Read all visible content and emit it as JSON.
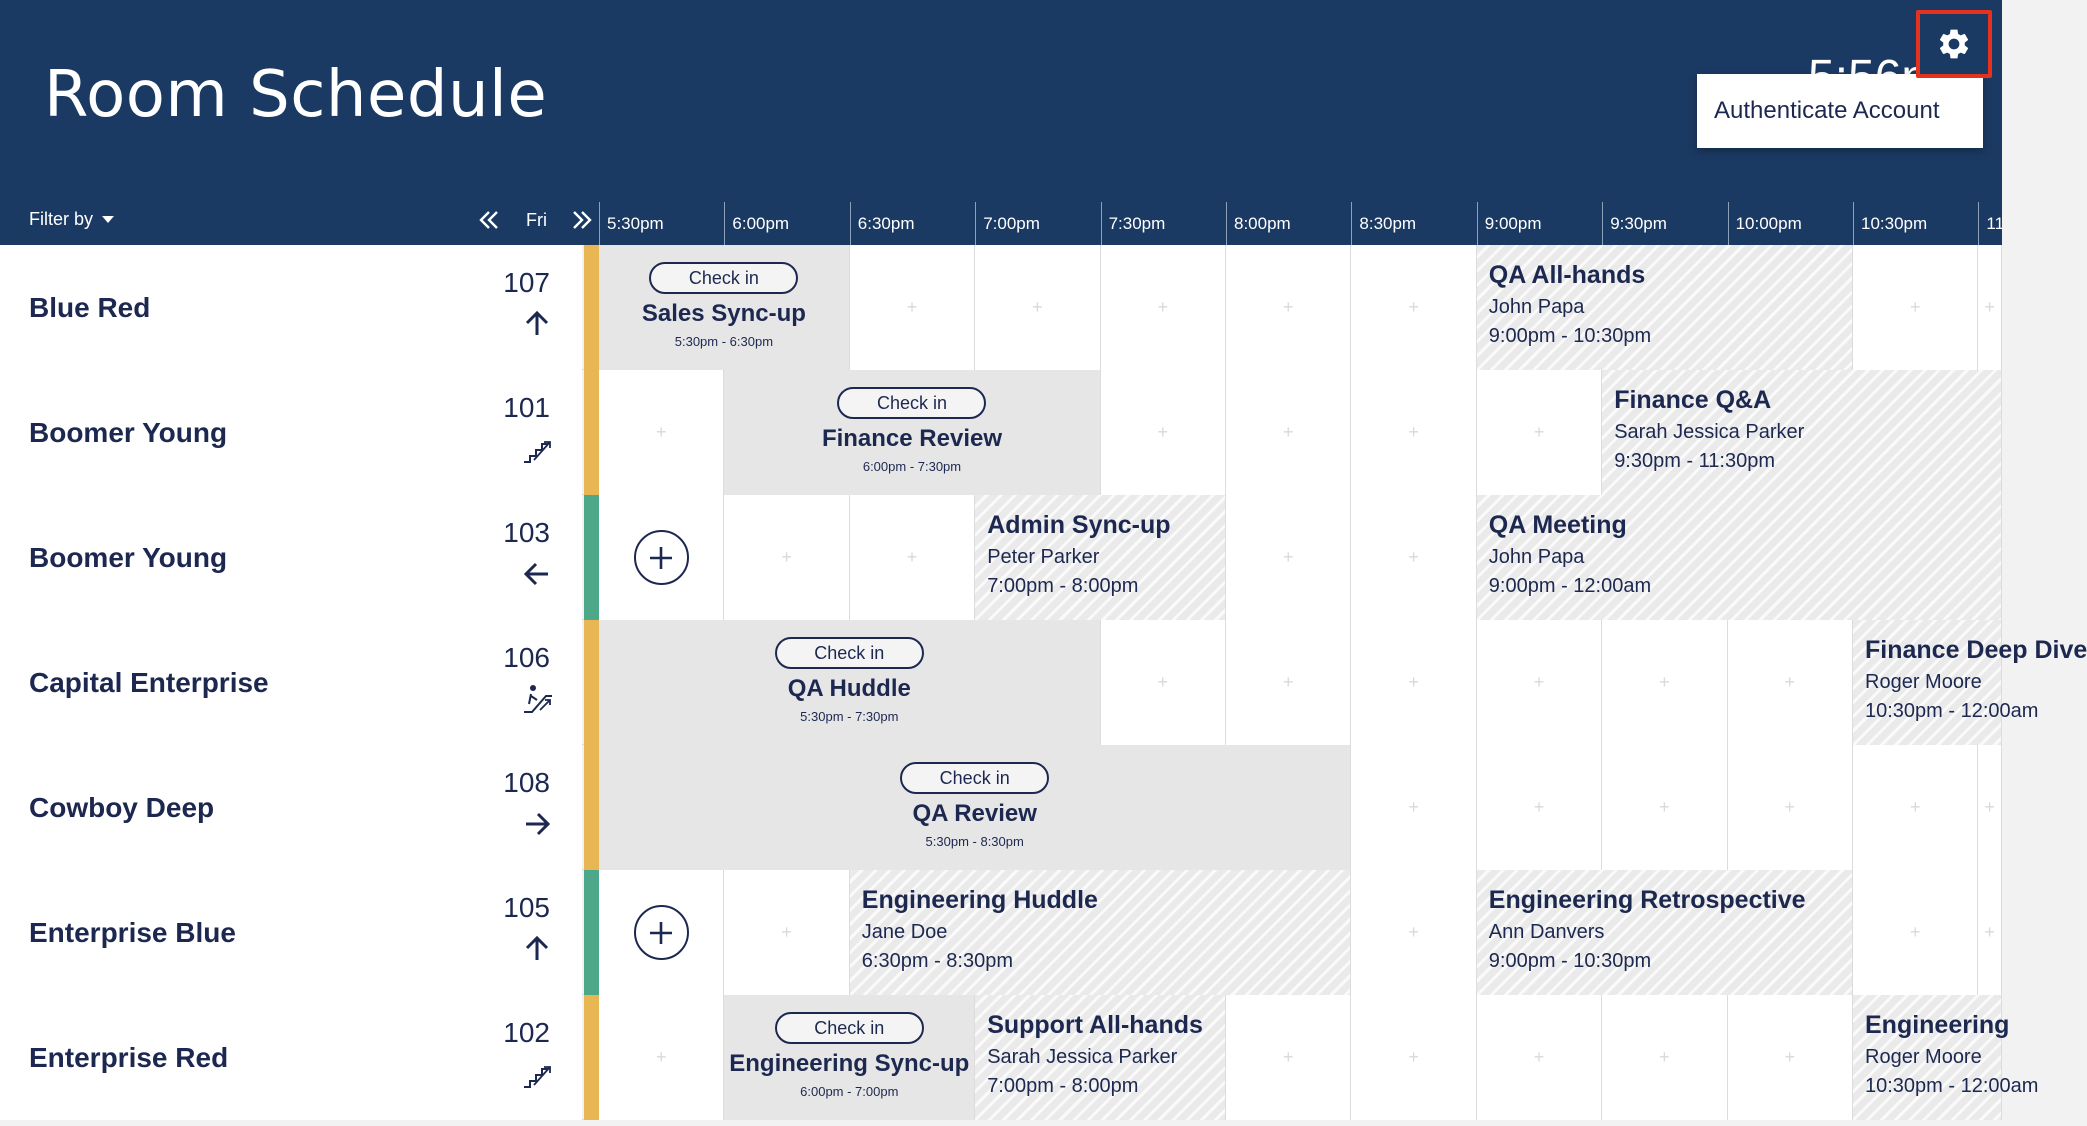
{
  "header": {
    "title": "Room Schedule",
    "clock_partial": "5:56p",
    "menu_item": "Authenticate Account"
  },
  "toolbar": {
    "filter_label": "Filter by",
    "day_label": "Fri",
    "prev_icon": "double-chevron-left",
    "next_icon": "double-chevron-right"
  },
  "timeline": {
    "ticks": [
      "5:30pm",
      "6:00pm",
      "6:30pm",
      "7:00pm",
      "7:30pm",
      "8:00pm",
      "8:30pm",
      "9:00pm",
      "9:30pm",
      "10:00pm",
      "10:30pm",
      "11"
    ]
  },
  "colors": {
    "header_bg": "#1b3a63",
    "status_busy": "#e9b654",
    "status_free": "#4da88a",
    "highlight_border": "#e5321f",
    "text": "#1d2850"
  },
  "rooms": [
    {
      "name": "Blue Red",
      "number": "107",
      "direction": "up-arrow",
      "status": "busy",
      "empty_slots": [
        2,
        3,
        4,
        5,
        6,
        10,
        11
      ],
      "events": [
        {
          "kind": "current",
          "start": 0,
          "span": 2,
          "title": "Sales Sync-up",
          "time": "5:30pm - 6:30pm",
          "check_in": "Check in"
        },
        {
          "kind": "future",
          "start": 7,
          "span": 3,
          "title": "QA All-hands",
          "organizer": "John Papa",
          "time": "9:00pm - 10:30pm"
        }
      ]
    },
    {
      "name": "Boomer Young",
      "number": "101",
      "direction": "stairs-icon",
      "status": "busy",
      "empty_slots": [
        0,
        4,
        5,
        6,
        7
      ],
      "events": [
        {
          "kind": "current",
          "start": 1,
          "span": 3,
          "title": "Finance Review",
          "time": "6:00pm - 7:30pm",
          "check_in": "Check in"
        },
        {
          "kind": "future",
          "start": 8,
          "span": 4,
          "title": "Finance Q&A",
          "organizer": "Sarah Jessica Parker",
          "time": "9:30pm - 11:30pm"
        }
      ]
    },
    {
      "name": "Boomer Young",
      "number": "103",
      "direction": "left-arrow",
      "status": "free",
      "add_slot": 0,
      "empty_slots": [
        1,
        2,
        5,
        6
      ],
      "events": [
        {
          "kind": "future",
          "start": 3,
          "span": 2,
          "title": "Admin Sync-up",
          "organizer": "Peter Parker",
          "time": "7:00pm - 8:00pm"
        },
        {
          "kind": "future",
          "start": 7,
          "span": 5,
          "title": "QA Meeting",
          "organizer": "John Papa",
          "time": "9:00pm - 12:00am"
        }
      ]
    },
    {
      "name": "Capital Enterprise",
      "number": "106",
      "direction": "escalator-icon",
      "status": "busy",
      "empty_slots": [
        4,
        5,
        6,
        7,
        8,
        9
      ],
      "events": [
        {
          "kind": "current",
          "start": 0,
          "span": 4,
          "title": "QA Huddle",
          "time": "5:30pm - 7:30pm",
          "check_in": "Check in"
        },
        {
          "kind": "future",
          "start": 10,
          "span": 2,
          "title": "Finance Deep Dive",
          "organizer": "Roger Moore",
          "time": "10:30pm - 12:00am"
        }
      ]
    },
    {
      "name": "Cowboy Deep",
      "number": "108",
      "direction": "right-arrow",
      "status": "busy",
      "empty_slots": [
        6,
        7,
        8,
        9,
        10,
        11
      ],
      "events": [
        {
          "kind": "current",
          "start": 0,
          "span": 6,
          "title": "QA Review",
          "time": "5:30pm - 8:30pm",
          "check_in": "Check in"
        }
      ]
    },
    {
      "name": "Enterprise Blue",
      "number": "105",
      "direction": "up-arrow",
      "status": "free",
      "add_slot": 0,
      "empty_slots": [
        1,
        6,
        10,
        11
      ],
      "events": [
        {
          "kind": "future",
          "start": 2,
          "span": 4,
          "title": "Engineering Huddle",
          "organizer": "Jane Doe",
          "time": "6:30pm - 8:30pm"
        },
        {
          "kind": "future",
          "start": 7,
          "span": 3,
          "title": "Engineering Retrospective",
          "organizer": "Ann Danvers",
          "time": "9:00pm - 10:30pm"
        }
      ]
    },
    {
      "name": "Enterprise Red",
      "number": "102",
      "direction": "stairs-icon",
      "status": "busy",
      "empty_slots": [
        0,
        5,
        6,
        7,
        8,
        9
      ],
      "events": [
        {
          "kind": "current",
          "start": 1,
          "span": 2,
          "title": "Engineering Sync-up",
          "time": "6:00pm - 7:00pm",
          "check_in": "Check in"
        },
        {
          "kind": "future",
          "start": 3,
          "span": 2,
          "title": "Support All-hands",
          "organizer": "Sarah Jessica Parker",
          "time": "7:00pm - 8:00pm"
        },
        {
          "kind": "future",
          "start": 10,
          "span": 2,
          "title": "Engineering",
          "organizer": "Roger Moore",
          "time": "10:30pm - 12:00am"
        }
      ]
    }
  ]
}
